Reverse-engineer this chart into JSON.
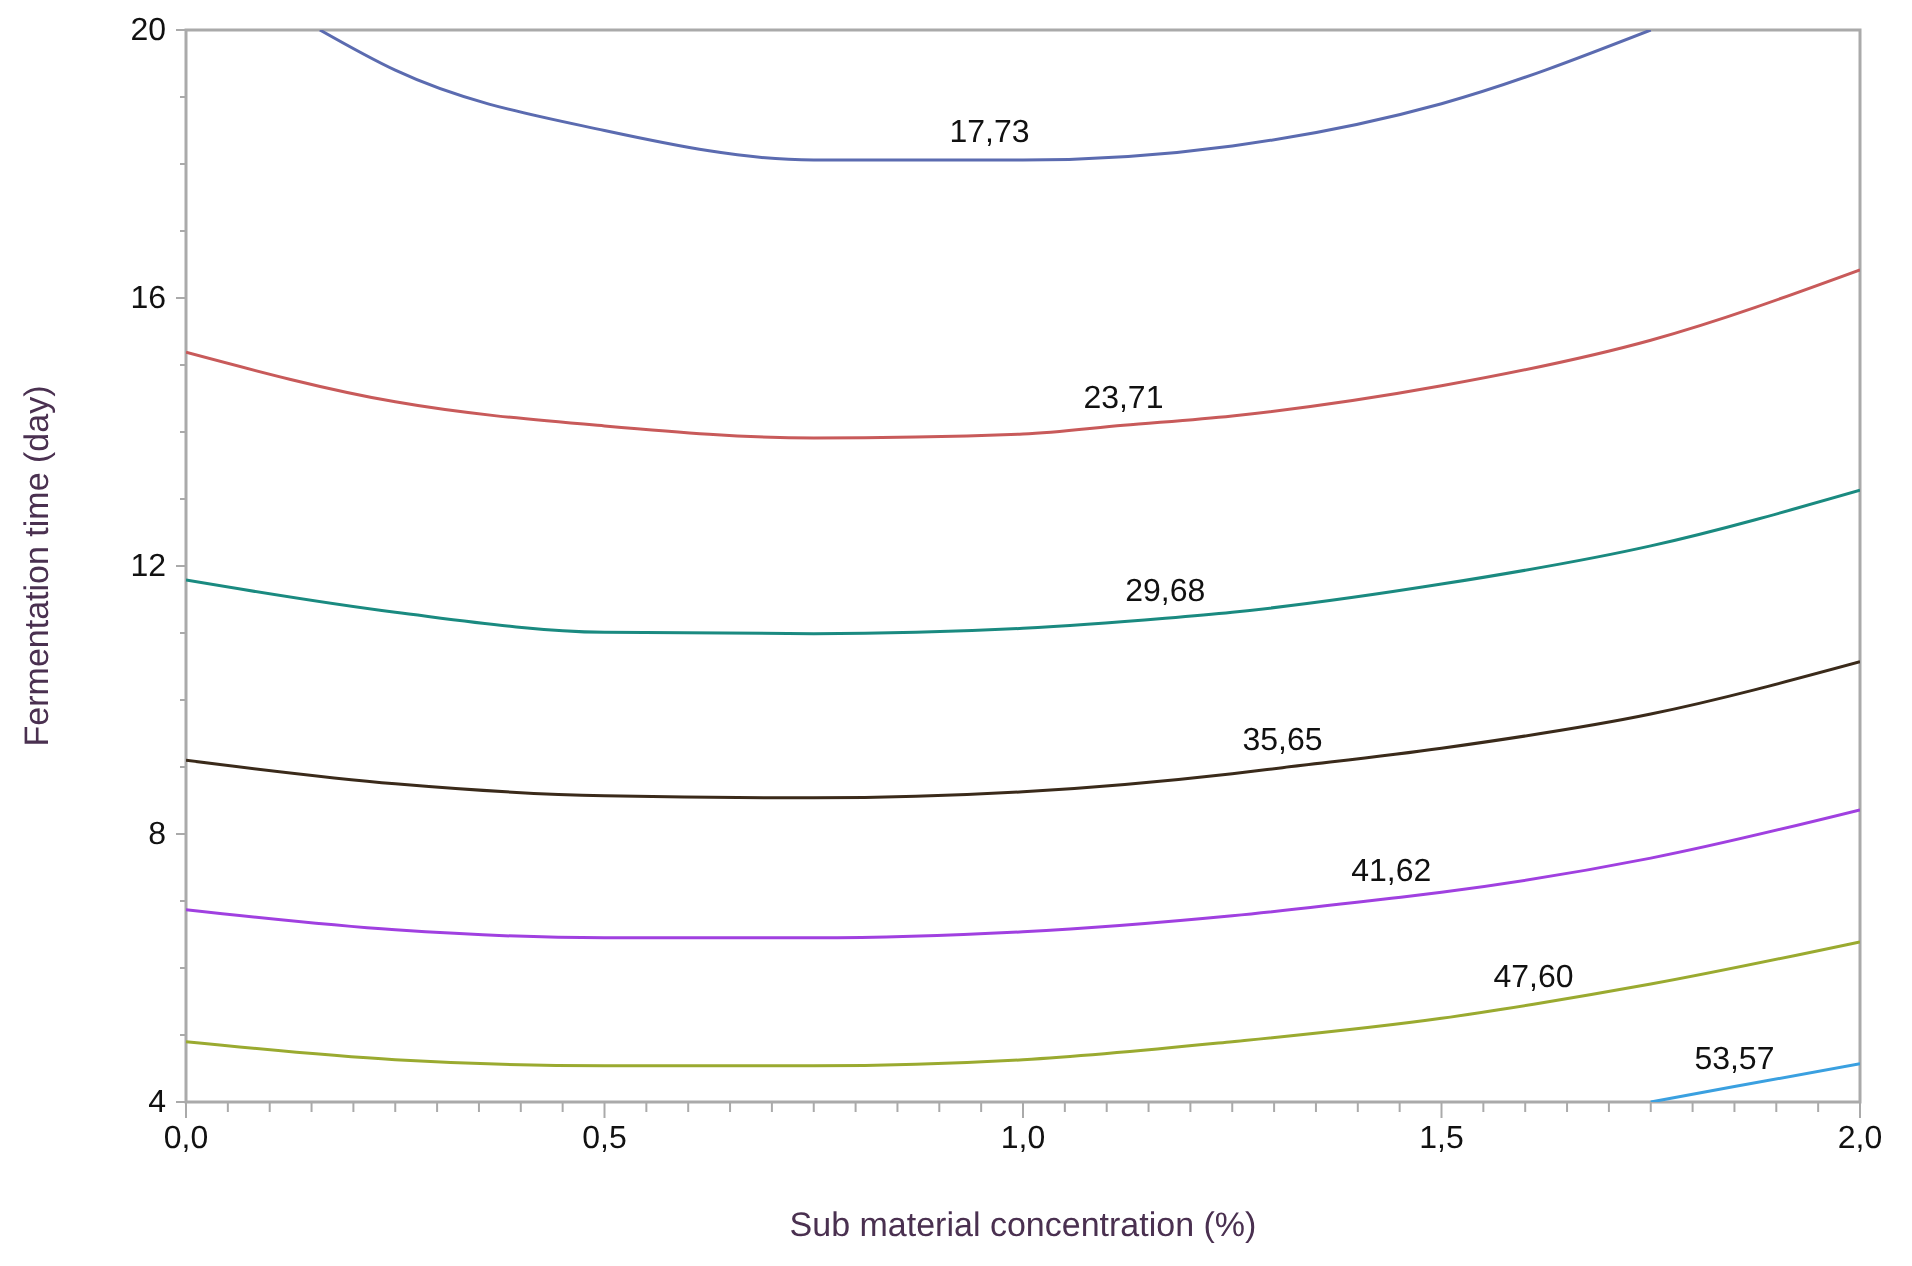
{
  "chart_data": {
    "type": "line",
    "xlabel": "Sub material concentration (%)",
    "ylabel": "Fermentation time (day)",
    "xlim": [
      0,
      2
    ],
    "ylim": [
      4,
      20
    ],
    "xticks": [
      {
        "value": 0,
        "label": "0,0"
      },
      {
        "value": 0.05,
        "label": null
      },
      {
        "value": 0.1,
        "label": null
      },
      {
        "value": 0.15,
        "label": null
      },
      {
        "value": 0.2,
        "label": null
      },
      {
        "value": 0.25,
        "label": null
      },
      {
        "value": 0.3,
        "label": null
      },
      {
        "value": 0.35,
        "label": null
      },
      {
        "value": 0.4,
        "label": null
      },
      {
        "value": 0.45,
        "label": null
      },
      {
        "value": 0.5,
        "label": "0,5"
      },
      {
        "value": 0.55,
        "label": null
      },
      {
        "value": 0.6,
        "label": null
      },
      {
        "value": 0.65,
        "label": null
      },
      {
        "value": 0.7,
        "label": null
      },
      {
        "value": 0.75,
        "label": null
      },
      {
        "value": 0.8,
        "label": null
      },
      {
        "value": 0.85,
        "label": null
      },
      {
        "value": 0.9,
        "label": null
      },
      {
        "value": 0.95,
        "label": null
      },
      {
        "value": 1,
        "label": "1,0"
      },
      {
        "value": 1.05,
        "label": null
      },
      {
        "value": 1.1,
        "label": null
      },
      {
        "value": 1.15,
        "label": null
      },
      {
        "value": 1.2,
        "label": null
      },
      {
        "value": 1.25,
        "label": null
      },
      {
        "value": 1.3,
        "label": null
      },
      {
        "value": 1.35,
        "label": null
      },
      {
        "value": 1.4,
        "label": null
      },
      {
        "value": 1.45,
        "label": null
      },
      {
        "value": 1.5,
        "label": "1,5"
      },
      {
        "value": 1.55,
        "label": null
      },
      {
        "value": 1.6,
        "label": null
      },
      {
        "value": 1.65,
        "label": null
      },
      {
        "value": 1.7,
        "label": null
      },
      {
        "value": 1.75,
        "label": null
      },
      {
        "value": 1.8,
        "label": null
      },
      {
        "value": 1.85,
        "label": null
      },
      {
        "value": 1.9,
        "label": null
      },
      {
        "value": 1.95,
        "label": null
      },
      {
        "value": 2,
        "label": "2,0"
      }
    ],
    "yticks": [
      4,
      {
        "value": 5,
        "label": null
      },
      {
        "value": 6,
        "label": null
      },
      {
        "value": 7,
        "label": null
      },
      8,
      {
        "value": 9,
        "label": null
      },
      {
        "value": 10,
        "label": null
      },
      {
        "value": 11,
        "label": null
      },
      12,
      {
        "value": 13,
        "label": null
      },
      {
        "value": 14,
        "label": null
      },
      {
        "value": 15,
        "label": null
      },
      16,
      {
        "value": 17,
        "label": null
      },
      {
        "value": 18,
        "label": null
      },
      {
        "value": 19,
        "label": null
      },
      20
    ],
    "series": [
      {
        "color": "#5b6bb0",
        "x": [
          0.16,
          0.25,
          0.5,
          0.75,
          0.96,
          1.0,
          1.25,
          1.5,
          1.75
        ],
        "values": [
          20,
          19.4,
          18.5,
          18.06,
          18.06,
          18.06,
          18.27,
          18.9,
          20
        ]
      },
      {
        "color": "#c85a5a",
        "x": [
          0,
          0.25,
          0.5,
          0.75,
          1.0,
          1.12,
          1.25,
          1.5,
          1.75,
          2.0
        ],
        "values": [
          15.19,
          14.45,
          14.09,
          13.91,
          13.97,
          14.1,
          14.24,
          14.69,
          15.37,
          16.42
        ]
      },
      {
        "color": "#1a8a80",
        "x": [
          0,
          0.25,
          0.5,
          0.75,
          1.0,
          1.17,
          1.25,
          1.5,
          1.75,
          2.0
        ],
        "values": [
          11.79,
          11.31,
          11.01,
          10.99,
          11.07,
          11.22,
          11.31,
          11.73,
          12.3,
          13.13
        ]
      },
      {
        "color": "#3a2a1a",
        "x": [
          0,
          0.25,
          0.5,
          0.75,
          1.0,
          1.25,
          1.31,
          1.5,
          1.75,
          2.0
        ],
        "values": [
          9.1,
          8.75,
          8.57,
          8.54,
          8.63,
          8.9,
          8.99,
          9.28,
          9.79,
          10.57
        ]
      },
      {
        "color": "#a040e0",
        "x": [
          0,
          0.25,
          0.5,
          0.75,
          1.0,
          1.25,
          1.44,
          1.5,
          1.75,
          2.0
        ],
        "values": [
          6.87,
          6.57,
          6.45,
          6.45,
          6.54,
          6.78,
          7.04,
          7.13,
          7.64,
          8.36
        ]
      },
      {
        "color": "#9aaa30",
        "x": [
          0,
          0.25,
          0.5,
          0.75,
          1.0,
          1.25,
          1.5,
          1.61,
          1.75,
          2.0
        ],
        "values": [
          4.9,
          4.63,
          4.54,
          4.54,
          4.63,
          4.9,
          5.25,
          5.46,
          5.76,
          6.39
        ]
      },
      {
        "color": "#3aa0e0",
        "x": [
          1.75,
          1.85,
          2.0
        ],
        "values": [
          4,
          4.23,
          4.57
        ]
      }
    ],
    "annotations": [
      {
        "text": "17,73",
        "x": 0.96,
        "y": 18.06
      },
      {
        "text": "23,71",
        "x": 1.12,
        "y": 14.1
      },
      {
        "text": "29,68",
        "x": 1.17,
        "y": 11.22
      },
      {
        "text": "35,65",
        "x": 1.31,
        "y": 8.99
      },
      {
        "text": "41,62",
        "x": 1.44,
        "y": 7.04
      },
      {
        "text": "47,60",
        "x": 1.61,
        "y": 5.46
      },
      {
        "text": "53,57",
        "x": 1.85,
        "y": 4.23
      }
    ]
  }
}
